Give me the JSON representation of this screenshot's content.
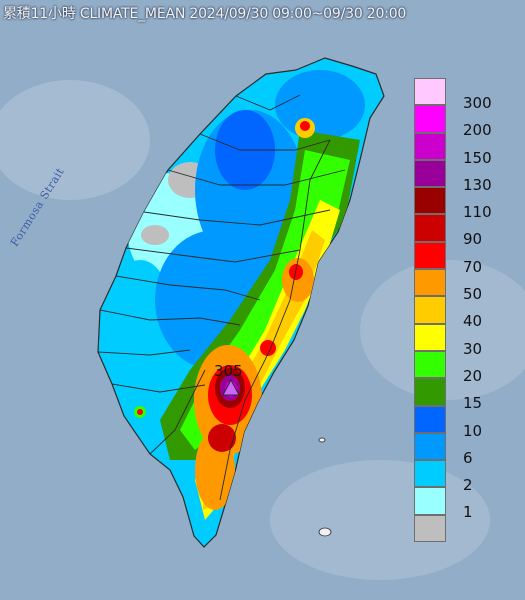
{
  "title": "累積11小時 CLIMATE_MEAN 2024/09/30 09:00~09/30 20:00",
  "strait_label": "Formosa Strait",
  "max_marker": {
    "value_label": "305",
    "marker": "triangle-icon"
  },
  "legend": {
    "items": [
      {
        "value": "300",
        "color": "#ffc8ff"
      },
      {
        "value": "200",
        "color": "#ff00ff"
      },
      {
        "value": "150",
        "color": "#cc00cc"
      },
      {
        "value": "130",
        "color": "#990099"
      },
      {
        "value": "110",
        "color": "#990000"
      },
      {
        "value": "90",
        "color": "#cc0000"
      },
      {
        "value": "70",
        "color": "#ff0000"
      },
      {
        "value": "50",
        "color": "#ff9900"
      },
      {
        "value": "40",
        "color": "#ffcc00"
      },
      {
        "value": "30",
        "color": "#ffff00"
      },
      {
        "value": "20",
        "color": "#33ff00"
      },
      {
        "value": "15",
        "color": "#339900"
      },
      {
        "value": "10",
        "color": "#0066ff"
      },
      {
        "value": "6",
        "color": "#0099ff"
      },
      {
        "value": "2",
        "color": "#00ccff"
      },
      {
        "value": "1",
        "color": "#99ffff"
      },
      {
        "value": "",
        "color": "#bebebe"
      }
    ]
  }
}
